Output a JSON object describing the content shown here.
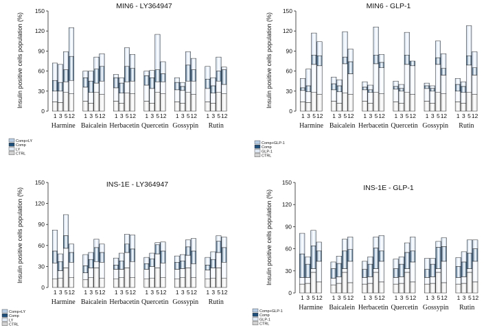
{
  "figure": {
    "x_tick_labels": [
      "1",
      "3",
      "5",
      "12"
    ]
  },
  "colors": {
    "CTRL": "#d2d2d2",
    "treatment": "#dfe9f6",
    "Comp": "#1d4f7c",
    "Comp+treatment": "#b7cde6",
    "edge": "#222222"
  },
  "chart_data": [
    {
      "type": "bar",
      "stacked": true,
      "title": "MIN6 - LY364947",
      "ylabel": "Insulin positive cells population (%)",
      "ylim": [
        0,
        150
      ],
      "yticks": [
        0,
        30,
        60,
        90,
        120,
        150
      ],
      "legend": [
        "Comp+LY",
        "Comp",
        "LY",
        "CTRL"
      ],
      "compounds": [
        "Harmine",
        "Baicalein",
        "Herbacetin",
        "Quercetin",
        "Gossypin",
        "Rutin"
      ],
      "x_ticks": [
        "1",
        "3",
        "5",
        "12"
      ],
      "layer_order": [
        "CTRL",
        "LY",
        "Comp",
        "Comp+LY"
      ],
      "groups": [
        {
          "compound": "Harmine",
          "stacks": [
            [
              14,
              16,
              16,
              26
            ],
            [
              13,
              17,
              13,
              27
            ],
            [
              28,
              16,
              18,
              27
            ],
            [
              26,
              20,
              36,
              43
            ]
          ]
        },
        {
          "compound": "Baicalein",
          "stacks": [
            [
              15,
              21,
              14,
              10
            ],
            [
              12,
              16,
              17,
              15
            ],
            [
              28,
              14,
              21,
              18
            ],
            [
              25,
              20,
              22,
              19
            ]
          ]
        },
        {
          "compound": "Herbacetin",
          "stacks": [
            [
              15,
              20,
              15,
              5
            ],
            [
              12,
              15,
              15,
              8
            ],
            [
              27,
              17,
              23,
              28
            ],
            [
              26,
              19,
              19,
              21
            ]
          ]
        },
        {
          "compound": "Quercetin",
          "stacks": [
            [
              15,
              24,
              14,
              7
            ],
            [
              12,
              22,
              16,
              11
            ],
            [
              28,
              16,
              18,
              53
            ],
            [
              26,
              18,
              12,
              18
            ]
          ]
        },
        {
          "compound": "Gossypin",
          "stacks": [
            [
              14,
              18,
              11,
              7
            ],
            [
              12,
              19,
              6,
              6
            ],
            [
              28,
              17,
              24,
              20
            ],
            [
              25,
              20,
              17,
              17
            ]
          ]
        },
        {
          "compound": "Rutin",
          "stacks": [
            [
              14,
              20,
              14,
              19
            ],
            [
              12,
              15,
              11,
              12
            ],
            [
              28,
              17,
              15,
              21
            ],
            [
              26,
              14,
              22,
              4
            ]
          ]
        }
      ]
    },
    {
      "type": "bar",
      "stacked": true,
      "title": "MIN6 - GLP-1",
      "ylabel": "Insulin positive cells population (%)",
      "ylim": [
        0,
        150
      ],
      "yticks": [
        0,
        30,
        60,
        90,
        120,
        150
      ],
      "legend": [
        "Comp+GLP-1",
        "Comp",
        "GLP-1",
        "CTRL"
      ],
      "compounds": [
        "Harmine",
        "Baicalein",
        "Herbacetin",
        "Quercetin",
        "Gossypin",
        "Rutin"
      ],
      "x_ticks": [
        "1",
        "3",
        "5",
        "12"
      ],
      "layer_order": [
        "CTRL",
        "GLP-1",
        "Comp",
        "Comp+GLP-1"
      ],
      "groups": [
        {
          "compound": "Harmine",
          "stacks": [
            [
              14,
              17,
              4,
              14
            ],
            [
              13,
              16,
              9,
              25
            ],
            [
              28,
              42,
              14,
              33
            ],
            [
              25,
              43,
              15,
              21
            ]
          ]
        },
        {
          "compound": "Baicalein",
          "stacks": [
            [
              15,
              17,
              9,
              10
            ],
            [
              12,
              17,
              9,
              9
            ],
            [
              27,
              44,
              10,
              38
            ],
            [
              25,
              31,
              18,
              19
            ]
          ]
        },
        {
          "compound": "Herbacetin",
          "stacks": [
            [
              15,
              17,
              4,
              8
            ],
            [
              12,
              16,
              4,
              7
            ],
            [
              28,
              43,
              13,
              42
            ],
            [
              26,
              39,
              8,
              12
            ]
          ]
        },
        {
          "compound": "Quercetin",
          "stacks": [
            [
              14,
              19,
              4,
              8
            ],
            [
              12,
              18,
              4,
              6
            ],
            [
              28,
              42,
              14,
              34
            ],
            [
              25,
              43,
              7,
              0
            ]
          ]
        },
        {
          "compound": "Gossypin",
          "stacks": [
            [
              15,
              19,
              4,
              4
            ],
            [
              12,
              18,
              4,
              4
            ],
            [
              28,
              42,
              10,
              25
            ],
            [
              26,
              28,
              10,
              22
            ]
          ]
        },
        {
          "compound": "Rutin",
          "stacks": [
            [
              14,
              16,
              10,
              9
            ],
            [
              12,
              16,
              9,
              7
            ],
            [
              28,
              41,
              14,
              45
            ],
            [
              25,
              29,
              11,
              24
            ]
          ]
        }
      ]
    },
    {
      "type": "bar",
      "stacked": true,
      "title": "INS-1E - LY364947",
      "ylabel": "Insulin positive cells population (%)",
      "ylim": [
        0,
        150
      ],
      "yticks": [
        0,
        30,
        60,
        90,
        120,
        150
      ],
      "legend": [
        "Comp+LY",
        "Comp",
        "LY",
        "CTRL"
      ],
      "compounds": [
        "Harmine",
        "Baicalein",
        "Herbacetin",
        "Quercetin",
        "Gossypin",
        "Rutin"
      ],
      "x_ticks": [
        "1",
        "3",
        "5",
        "12"
      ],
      "layer_order": [
        "CTRL",
        "LY",
        "Comp",
        "Comp+LY"
      ],
      "groups": [
        {
          "compound": "Harmine",
          "stacks": [
            [
              12,
              23,
              17,
              30
            ],
            [
              13,
              11,
              13,
              11
            ],
            [
              28,
              28,
              18,
              30
            ],
            [
              14,
              22,
              14,
              12
            ]
          ]
        },
        {
          "compound": "Baicalein",
          "stacks": [
            [
              11,
              10,
              10,
              16
            ],
            [
              14,
              14,
              12,
              10
            ],
            [
              28,
              9,
              20,
              12
            ],
            [
              13,
              23,
              14,
              12
            ]
          ]
        },
        {
          "compound": "Herbacetin",
          "stacks": [
            [
              12,
              14,
              6,
              10
            ],
            [
              14,
              12,
              12,
              11
            ],
            [
              28,
              22,
              12,
              14
            ],
            [
              14,
              23,
              18,
              20
            ]
          ]
        },
        {
          "compound": "Quercetin",
          "stacks": [
            [
              12,
              14,
              8,
              9
            ],
            [
              13,
              17,
              11,
              8
            ],
            [
              28,
              20,
              13,
              3
            ],
            [
              14,
              21,
              17,
              13
            ]
          ]
        },
        {
          "compound": "Gossypin",
          "stacks": [
            [
              12,
              14,
              10,
              9
            ],
            [
              14,
              13,
              11,
              9
            ],
            [
              28,
              18,
              12,
              10
            ],
            [
              14,
              20,
              18,
              18
            ]
          ]
        },
        {
          "compound": "Rutin",
          "stacks": [
            [
              12,
              13,
              7,
              11
            ],
            [
              13,
              15,
              12,
              11
            ],
            [
              28,
              22,
              16,
              8
            ],
            [
              13,
              23,
              21,
              15
            ]
          ]
        }
      ]
    },
    {
      "type": "bar",
      "stacked": true,
      "title": "INS-1E - GLP-1",
      "ylabel": "Insulin positive cells population (%)",
      "ylim": [
        0,
        150
      ],
      "yticks": [
        0,
        30,
        60,
        90,
        120,
        150
      ],
      "legend": [
        "Comp+GLP-1",
        "Comp",
        "GLP-1",
        "CTRL"
      ],
      "compounds": [
        "Harmine",
        "Baicalein",
        "Herbacetin",
        "Quercetin",
        "Gossypin",
        "Rutin"
      ],
      "x_ticks": [
        "1",
        "3",
        "5",
        "12"
      ],
      "layer_order": [
        "CTRL",
        "GLP-1",
        "Comp",
        "Comp+GLP-1"
      ],
      "groups": [
        {
          "compound": "Harmine",
          "stacks": [
            [
              12,
              9,
              32,
              28
            ],
            [
              13,
              8,
              18,
              10
            ],
            [
              28,
              5,
              31,
              21
            ],
            [
              15,
              28,
              14,
              12
            ]
          ]
        },
        {
          "compound": "Baicalein",
          "stacks": [
            [
              11,
              9,
              13,
              9
            ],
            [
              13,
              9,
              18,
              10
            ],
            [
              28,
              5,
              24,
              16
            ],
            [
              14,
              29,
              16,
              17
            ]
          ]
        },
        {
          "compound": "Herbacetin",
          "stacks": [
            [
              12,
              9,
              11,
              11
            ],
            [
              13,
              9,
              17,
              10
            ],
            [
              28,
              5,
              28,
              15
            ],
            [
              15,
              28,
              14,
              21
            ]
          ]
        },
        {
          "compound": "Quercetin",
          "stacks": [
            [
              12,
              9,
              12,
              13
            ],
            [
              13,
              9,
              17,
              10
            ],
            [
              28,
              5,
              22,
              13
            ],
            [
              15,
              27,
              15,
              19
            ]
          ]
        },
        {
          "compound": "Gossypin",
          "stacks": [
            [
              12,
              9,
              11,
              15
            ],
            [
              13,
              9,
              17,
              8
            ],
            [
              28,
              5,
              29,
              8
            ],
            [
              14,
              29,
              20,
              12
            ]
          ]
        },
        {
          "compound": "Rutin",
          "stacks": [
            [
              12,
              9,
              15,
              12
            ],
            [
              13,
              9,
              20,
              14
            ],
            [
              28,
              5,
              21,
              18
            ],
            [
              15,
              28,
              17,
              12
            ]
          ]
        }
      ]
    }
  ]
}
